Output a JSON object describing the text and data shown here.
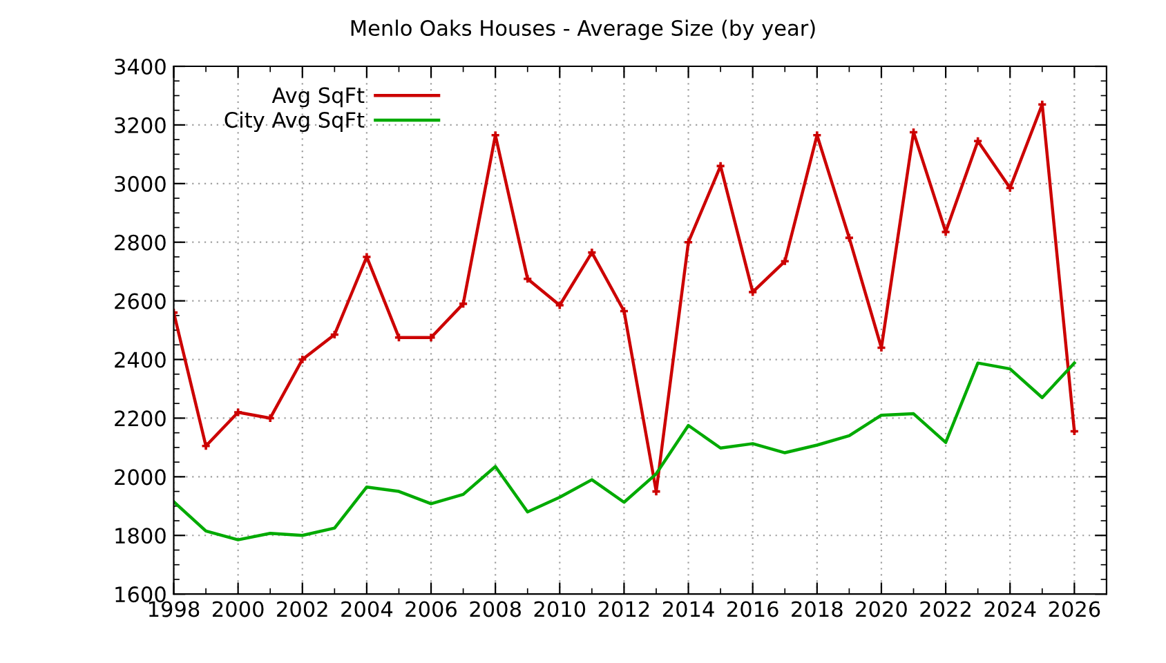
{
  "chart_data": {
    "type": "line",
    "title": "Menlo Oaks Houses - Average Size (by year)",
    "x": [
      1998,
      1999,
      2000,
      2001,
      2002,
      2003,
      2004,
      2005,
      2006,
      2007,
      2008,
      2009,
      2010,
      2011,
      2012,
      2013,
      2014,
      2015,
      2016,
      2017,
      2018,
      2019,
      2020,
      2021,
      2022,
      2023,
      2024,
      2025,
      2026
    ],
    "series": [
      {
        "name": "Avg SqFt",
        "color": "#cc0000",
        "marker": "cross",
        "values": [
          2560,
          2105,
          2220,
          2200,
          2400,
          2485,
          2750,
          2475,
          2475,
          2590,
          3165,
          2675,
          2585,
          2765,
          2565,
          1950,
          2800,
          3060,
          2630,
          2735,
          3165,
          2815,
          2440,
          3175,
          2835,
          3145,
          2985,
          3270,
          2155
        ]
      },
      {
        "name": "City Avg SqFt",
        "color": "#00aa00",
        "marker": "none",
        "values": [
          1915,
          1815,
          1785,
          1807,
          1800,
          1825,
          1965,
          1950,
          1908,
          1940,
          2035,
          1880,
          1930,
          1990,
          1913,
          2010,
          2175,
          2098,
          2113,
          2082,
          2108,
          2140,
          2210,
          2215,
          2117,
          2388,
          2368,
          2270,
          2388
        ]
      }
    ],
    "xlim": [
      1998,
      2027
    ],
    "xticks": [
      1998,
      2000,
      2002,
      2004,
      2006,
      2008,
      2010,
      2012,
      2014,
      2016,
      2018,
      2020,
      2022,
      2024,
      2026
    ],
    "ylim": [
      1600,
      3400
    ],
    "yticks": [
      1600,
      1800,
      2000,
      2200,
      2400,
      2600,
      2800,
      3000,
      3200,
      3400
    ],
    "grid": true,
    "legend": "top left",
    "line_style": "solid"
  }
}
